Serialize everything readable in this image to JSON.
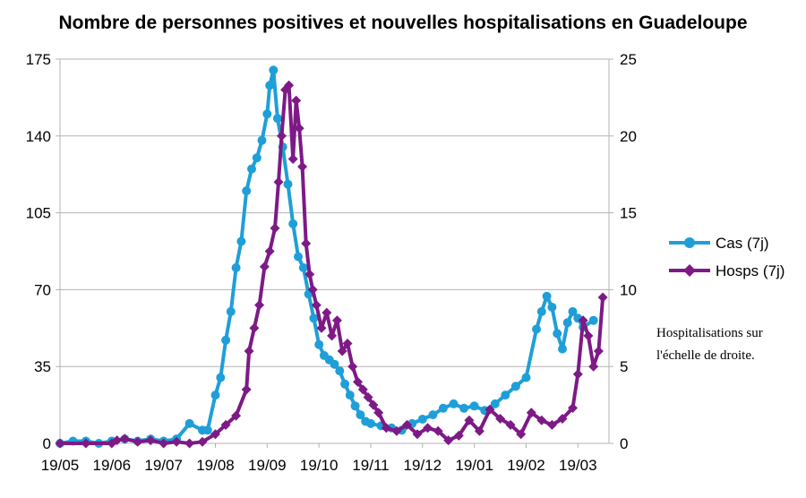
{
  "chart_data": {
    "type": "line",
    "title": "Nombre de personnes positives et nouvelles hospitalisations en Guadeloupe",
    "x_tick_labels": [
      "19/05",
      "19/06",
      "19/07",
      "19/08",
      "19/09",
      "19/10",
      "19/11",
      "19/12",
      "19/01",
      "19/02",
      "19/03"
    ],
    "x_range_months": [
      0,
      10.6
    ],
    "y_left": {
      "ticks": [
        "0",
        "35",
        "70",
        "105",
        "140",
        "175"
      ],
      "range": [
        0,
        175
      ]
    },
    "y_right": {
      "ticks": [
        "0",
        "5",
        "10",
        "15",
        "20",
        "25"
      ],
      "range": [
        0,
        25
      ]
    },
    "grid": "horizontal",
    "legend_placement": "right",
    "annotation": [
      "Hospitalisations sur",
      "l'échelle de droite."
    ],
    "series": [
      {
        "name": "Cas (7j)",
        "axis": "left",
        "color": "#1f9fd8",
        "marker": "circle",
        "points": [
          [
            0.0,
            0
          ],
          [
            0.25,
            1
          ],
          [
            0.5,
            1
          ],
          [
            0.75,
            0
          ],
          [
            1.0,
            1
          ],
          [
            1.25,
            2
          ],
          [
            1.5,
            1
          ],
          [
            1.75,
            2
          ],
          [
            2.0,
            1
          ],
          [
            2.25,
            2
          ],
          [
            2.5,
            9
          ],
          [
            2.75,
            6
          ],
          [
            2.85,
            6
          ],
          [
            3.0,
            22
          ],
          [
            3.1,
            30
          ],
          [
            3.2,
            47
          ],
          [
            3.3,
            60
          ],
          [
            3.4,
            80
          ],
          [
            3.5,
            92
          ],
          [
            3.6,
            115
          ],
          [
            3.7,
            125
          ],
          [
            3.8,
            130
          ],
          [
            3.9,
            138
          ],
          [
            4.0,
            150
          ],
          [
            4.05,
            163
          ],
          [
            4.12,
            170
          ],
          [
            4.2,
            148
          ],
          [
            4.3,
            135
          ],
          [
            4.4,
            118
          ],
          [
            4.5,
            100
          ],
          [
            4.6,
            85
          ],
          [
            4.7,
            80
          ],
          [
            4.8,
            68
          ],
          [
            4.9,
            57
          ],
          [
            5.0,
            45
          ],
          [
            5.1,
            40
          ],
          [
            5.2,
            38
          ],
          [
            5.3,
            36
          ],
          [
            5.4,
            33
          ],
          [
            5.5,
            27
          ],
          [
            5.6,
            22
          ],
          [
            5.7,
            17
          ],
          [
            5.8,
            13
          ],
          [
            5.9,
            10
          ],
          [
            6.0,
            9
          ],
          [
            6.2,
            8
          ],
          [
            6.4,
            7
          ],
          [
            6.6,
            6
          ],
          [
            6.8,
            9
          ],
          [
            7.0,
            11
          ],
          [
            7.2,
            13
          ],
          [
            7.4,
            16
          ],
          [
            7.6,
            18
          ],
          [
            7.8,
            16
          ],
          [
            8.0,
            17
          ],
          [
            8.2,
            15
          ],
          [
            8.4,
            18
          ],
          [
            8.6,
            22
          ],
          [
            8.8,
            26
          ],
          [
            9.0,
            30
          ],
          [
            9.2,
            52
          ],
          [
            9.3,
            60
          ],
          [
            9.4,
            67
          ],
          [
            9.5,
            62
          ],
          [
            9.6,
            50
          ],
          [
            9.7,
            43
          ],
          [
            9.8,
            55
          ],
          [
            9.9,
            60
          ],
          [
            10.0,
            57
          ],
          [
            10.1,
            53
          ],
          [
            10.3,
            56
          ]
        ]
      },
      {
        "name": "Hosps (7j)",
        "axis": "right",
        "color": "#7d1a86",
        "marker": "diamond",
        "points": [
          [
            0.0,
            0
          ],
          [
            0.5,
            0
          ],
          [
            1.0,
            0
          ],
          [
            1.1,
            0.2
          ],
          [
            1.25,
            0.3
          ],
          [
            1.5,
            0.1
          ],
          [
            1.75,
            0.2
          ],
          [
            2.0,
            0
          ],
          [
            2.25,
            0.1
          ],
          [
            2.5,
            0
          ],
          [
            2.75,
            0.1
          ],
          [
            3.0,
            0.6
          ],
          [
            3.2,
            1.2
          ],
          [
            3.4,
            1.8
          ],
          [
            3.6,
            3.5
          ],
          [
            3.65,
            6.0
          ],
          [
            3.75,
            7.5
          ],
          [
            3.85,
            9.0
          ],
          [
            3.95,
            11.5
          ],
          [
            4.05,
            12.5
          ],
          [
            4.15,
            14.0
          ],
          [
            4.22,
            17.0
          ],
          [
            4.28,
            20.0
          ],
          [
            4.35,
            23.0
          ],
          [
            4.42,
            23.3
          ],
          [
            4.5,
            18.5
          ],
          [
            4.56,
            22.3
          ],
          [
            4.62,
            20.5
          ],
          [
            4.68,
            18.0
          ],
          [
            4.75,
            13.0
          ],
          [
            4.82,
            11.0
          ],
          [
            4.88,
            10.0
          ],
          [
            4.95,
            9.0
          ],
          [
            5.05,
            7.5
          ],
          [
            5.15,
            8.5
          ],
          [
            5.25,
            7.0
          ],
          [
            5.35,
            8.0
          ],
          [
            5.45,
            6.0
          ],
          [
            5.55,
            6.5
          ],
          [
            5.65,
            5.0
          ],
          [
            5.75,
            4.0
          ],
          [
            5.85,
            3.5
          ],
          [
            5.95,
            3.0
          ],
          [
            6.05,
            2.5
          ],
          [
            6.15,
            2.0
          ],
          [
            6.3,
            1.0
          ],
          [
            6.5,
            0.8
          ],
          [
            6.7,
            1.2
          ],
          [
            6.9,
            0.6
          ],
          [
            7.1,
            1.0
          ],
          [
            7.3,
            0.8
          ],
          [
            7.5,
            0.2
          ],
          [
            7.7,
            0.5
          ],
          [
            7.9,
            1.5
          ],
          [
            8.1,
            0.8
          ],
          [
            8.3,
            2.2
          ],
          [
            8.5,
            1.6
          ],
          [
            8.7,
            1.2
          ],
          [
            8.9,
            0.6
          ],
          [
            9.1,
            2.0
          ],
          [
            9.3,
            1.5
          ],
          [
            9.5,
            1.2
          ],
          [
            9.7,
            1.6
          ],
          [
            9.9,
            2.3
          ],
          [
            10.0,
            4.5
          ],
          [
            10.1,
            8.0
          ],
          [
            10.2,
            7.0
          ],
          [
            10.3,
            5.0
          ],
          [
            10.4,
            6.0
          ],
          [
            10.48,
            9.5
          ]
        ]
      }
    ]
  }
}
